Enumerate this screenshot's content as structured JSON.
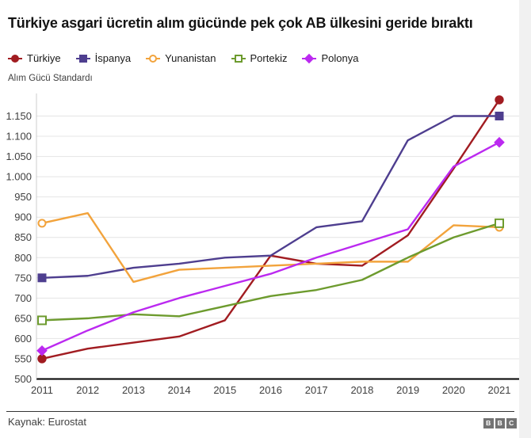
{
  "title": "Türkiye asgari ücretin alım gücünde pek çok AB ülkesini geride bıraktı",
  "axis_unit_label": "Alım Gücü Standardı",
  "source_label": "Kaynak: Eurostat",
  "logo": {
    "blocks": [
      "B",
      "B",
      "C"
    ],
    "block_color": "#737373"
  },
  "colors": {
    "background": "#ffffff",
    "gridline": "#e4e4e4",
    "axis_line": "#000000",
    "y_axis_line": "#cccccc",
    "tick_text": "#404040",
    "title_text": "#141414"
  },
  "chart_data": {
    "type": "line",
    "title": "Türkiye asgari ücretin alım gücünde pek çok AB ülkesini geride bıraktı",
    "ylabel": "Alım Gücü Standardı",
    "xlabel": "",
    "grid": true,
    "legend_position": "top",
    "markers_on": "endpoints-only",
    "ylim": [
      500,
      1200
    ],
    "x": [
      "2011",
      "2012",
      "2013",
      "2014",
      "2015",
      "2016",
      "2017",
      "2018",
      "2019",
      "2020",
      "2021"
    ],
    "yticks": [
      {
        "value": 500,
        "label": "500"
      },
      {
        "value": 550,
        "label": "550"
      },
      {
        "value": 600,
        "label": "600"
      },
      {
        "value": 650,
        "label": "650"
      },
      {
        "value": 700,
        "label": "700"
      },
      {
        "value": 750,
        "label": "750"
      },
      {
        "value": 800,
        "label": "800"
      },
      {
        "value": 850,
        "label": "850"
      },
      {
        "value": 900,
        "label": "900"
      },
      {
        "value": 950,
        "label": "950"
      },
      {
        "value": 1000,
        "label": "1.000"
      },
      {
        "value": 1050,
        "label": "1.050"
      },
      {
        "value": 1100,
        "label": "1.100"
      },
      {
        "value": 1150,
        "label": "1.150"
      }
    ],
    "series": [
      {
        "key": "turkiye",
        "name": "Türkiye",
        "color": "#a11c21",
        "marker": "circle-filled",
        "values": [
          550,
          575,
          590,
          605,
          645,
          805,
          785,
          780,
          855,
          1020,
          1190
        ]
      },
      {
        "key": "ispanya",
        "name": "İspanya",
        "color": "#4e3e8f",
        "marker": "square-filled",
        "values": [
          750,
          755,
          775,
          785,
          800,
          805,
          875,
          890,
          1090,
          1150,
          1150
        ]
      },
      {
        "key": "yunanistan",
        "name": "Yunanistan",
        "color": "#f2a33c",
        "marker": "circle-open",
        "values": [
          885,
          910,
          740,
          770,
          775,
          780,
          785,
          790,
          790,
          880,
          875
        ]
      },
      {
        "key": "portekiz",
        "name": "Portekiz",
        "color": "#6d9b2e",
        "marker": "square-open",
        "values": [
          645,
          650,
          660,
          655,
          680,
          705,
          720,
          745,
          800,
          850,
          885
        ]
      },
      {
        "key": "polonya",
        "name": "Polonya",
        "color": "#bb29f0",
        "marker": "diamond-filled",
        "values": [
          570,
          620,
          665,
          700,
          730,
          760,
          800,
          835,
          870,
          1025,
          1085
        ]
      }
    ]
  }
}
